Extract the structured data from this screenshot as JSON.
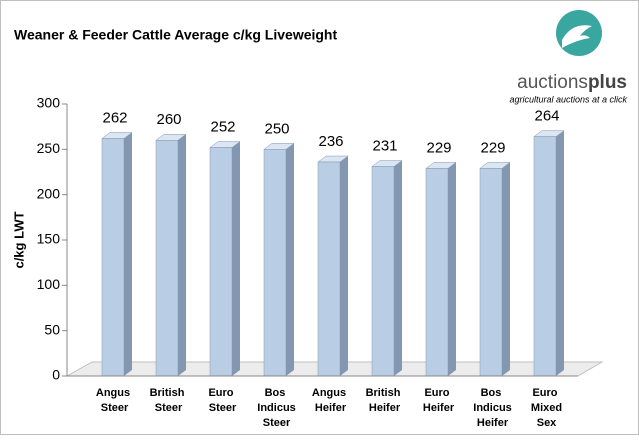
{
  "chart_data": {
    "type": "bar3d",
    "title": "Weaner & Feeder Cattle Average c/kg Liveweight",
    "y_label": "c/kg LWT",
    "logo": {
      "name": [
        "auctions",
        "plus"
      ],
      "tagline": "agricultural auctions at a click"
    },
    "categories": [
      "Angus Steer",
      "British Steer",
      "Euro Steer",
      "Bos Indicus Steer",
      "Angus Heifer",
      "British Heifer",
      "Euro Heifer",
      "Bos Indicus Heifer",
      "Euro Mixed Sex"
    ],
    "values": [
      262,
      260,
      252,
      250,
      236,
      231,
      229,
      229,
      264
    ],
    "color": "#b9cde5",
    "ylim": [
      0,
      300
    ],
    "yticks": [
      0,
      50,
      100,
      150,
      200,
      250,
      300
    ],
    "grid": false
  }
}
